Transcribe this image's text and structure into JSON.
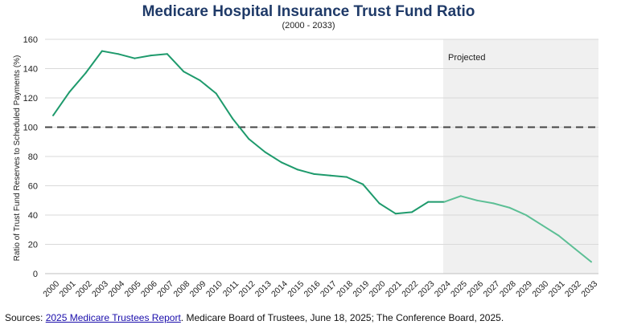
{
  "title": "Medicare Hospital Insurance Trust Fund Ratio",
  "subtitle": "(2000 - 2033)",
  "source": {
    "prefix": "Sources: ",
    "link_text": "2025 Medicare Trustees Report",
    "suffix": ". Medicare Board of Trustees, June 18, 2025; The Conference Board, 2025."
  },
  "chart_data": {
    "type": "line",
    "title": "Medicare Hospital Insurance Trust Fund Ratio",
    "subtitle": "(2000 - 2033)",
    "xlabel": "",
    "ylabel": "Ratio of Trust Fund Reserves to Scheduled Payments (%)",
    "ylim": [
      0,
      160
    ],
    "yticks": [
      0,
      20,
      40,
      60,
      80,
      100,
      120,
      140,
      160
    ],
    "grid": true,
    "reference_line": {
      "y": 100,
      "style": "dashed",
      "color": "#444444"
    },
    "projected_region": {
      "label": "Projected",
      "start": "2024",
      "end": "2033",
      "color": "#f0f0f0"
    },
    "x": [
      "2000",
      "2001",
      "2002",
      "2003",
      "2004",
      "2005",
      "2006",
      "2007",
      "2008",
      "2009",
      "2010",
      "2011",
      "2012",
      "2013",
      "2014",
      "2015",
      "2016",
      "2017",
      "2018",
      "2019",
      "2020",
      "2021",
      "2022",
      "2023",
      "2024",
      "2025",
      "2026",
      "2027",
      "2028",
      "2029",
      "2030",
      "2031",
      "2032",
      "2033"
    ],
    "series": [
      {
        "color": "#1e9a6c",
        "projected_color": "#5cbf95",
        "values": [
          108,
          124,
          137,
          152,
          150,
          147,
          149,
          150,
          138,
          132,
          123,
          106,
          92,
          83,
          76,
          71,
          68,
          67,
          66,
          61,
          48,
          41,
          42,
          49,
          49,
          53,
          50,
          48,
          45,
          40,
          33,
          26,
          17,
          8
        ]
      }
    ]
  }
}
